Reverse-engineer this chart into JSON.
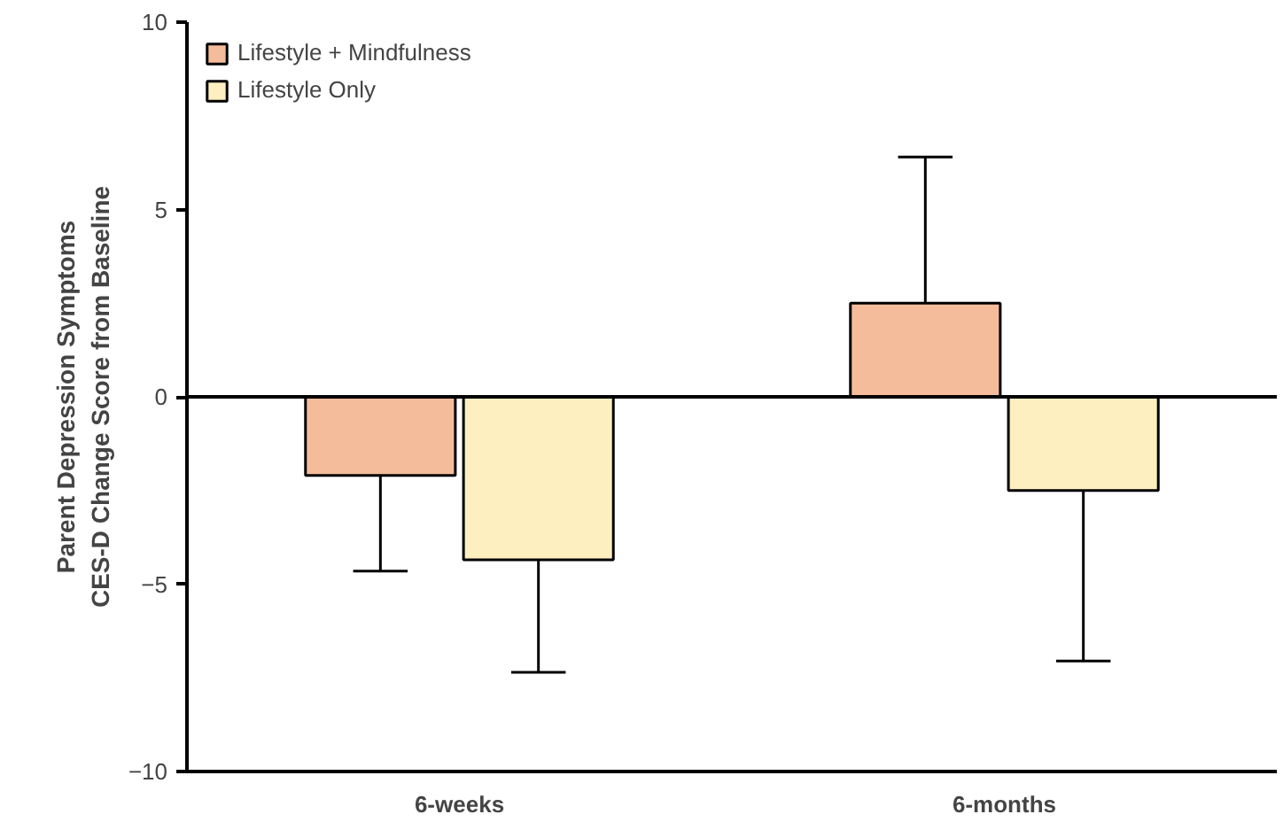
{
  "chart_data": {
    "type": "bar",
    "ylabel": "Parent Depression Symptoms\nCES-D Change Score from Baseline",
    "categories": [
      "6-weeks",
      "6-months"
    ],
    "series": [
      {
        "name": "Lifestyle + Mindfulness",
        "color": "#f4bc9a",
        "values": [
          -2.1,
          2.5
        ],
        "errors": [
          [
            -4.65,
            -2.1
          ],
          [
            2.5,
            6.4
          ]
        ]
      },
      {
        "name": "Lifestyle Only",
        "color": "#fdefc0",
        "values": [
          -4.35,
          -2.5
        ],
        "errors": [
          [
            -7.35,
            -4.35
          ],
          [
            -7.05,
            -2.5
          ]
        ]
      }
    ],
    "ylim": [
      -10,
      10
    ],
    "yticks": [
      -10,
      -5,
      0,
      5,
      10
    ],
    "ref_lines": [
      {
        "axis": "y",
        "value": 0,
        "label": null
      }
    ],
    "grid": false,
    "legend": "top left"
  }
}
